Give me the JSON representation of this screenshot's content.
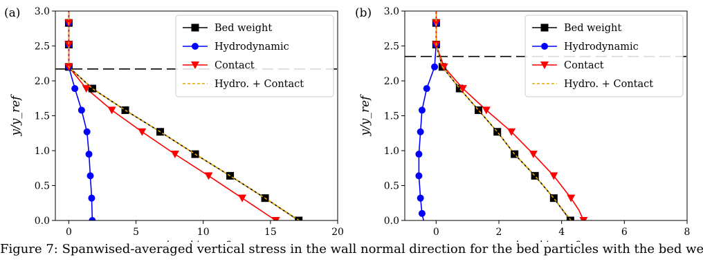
{
  "caption": "Figure 7: Spanwised-averaged vertical stress in the wall normal direction for the bed particles with the bed weight, hydrodynamic and contact contributions",
  "legend": {
    "bed_weight": "Bed weight",
    "hydrodynamic": "Hydrodynamic",
    "contact": "Contact",
    "sum": "Hydro. + Contact"
  },
  "colors": {
    "bed_weight": "#000000",
    "hydrodynamic": "#0000ff",
    "contact": "#ff0000",
    "sum": "#e6a800"
  },
  "chart_data": [
    {
      "type": "line",
      "panel_label": "(a)",
      "xlabel": "⟨σ_y⟩/σ_ref",
      "ylabel": "y/y_ref",
      "xlim": [
        -1,
        20
      ],
      "ylim": [
        0,
        3.0
      ],
      "xticks": [
        0,
        5,
        10,
        15,
        20
      ],
      "xtick_labels": [
        "0",
        "5",
        "10",
        "15",
        "20"
      ],
      "yticks": [
        0.0,
        0.5,
        1.0,
        1.5,
        2.0,
        2.5,
        3.0
      ],
      "ytick_labels": [
        "0.0",
        "0.5",
        "1.0",
        "1.5",
        "2.0",
        "2.5",
        "3.0"
      ],
      "hline": 2.17,
      "legend_position": "top-right",
      "series": [
        {
          "key": "bed_weight",
          "name": "Bed weight",
          "marker": "square",
          "x": [
            17.1,
            14.6,
            12.0,
            9.4,
            6.8,
            4.2,
            1.75,
            0.0,
            0.0,
            0.0,
            0.0
          ],
          "y": [
            0.0,
            0.32,
            0.64,
            0.95,
            1.27,
            1.58,
            1.89,
            2.2,
            2.52,
            2.83,
            3.0
          ],
          "mx": [
            17.1,
            14.6,
            12.0,
            9.4,
            6.8,
            4.2,
            1.75,
            0.0,
            0.0,
            0.0
          ],
          "my": [
            0.0,
            0.32,
            0.64,
            0.95,
            1.27,
            1.58,
            1.89,
            2.2,
            2.52,
            2.83
          ]
        },
        {
          "key": "hydrodynamic",
          "name": "Hydrodynamic",
          "marker": "circle",
          "x": [
            1.75,
            1.7,
            1.6,
            1.5,
            1.35,
            0.95,
            0.45,
            0.0,
            0.0,
            0.0,
            0.0
          ],
          "y": [
            0.0,
            0.32,
            0.64,
            0.95,
            1.27,
            1.58,
            1.89,
            2.2,
            2.52,
            2.83,
            3.0
          ],
          "mx": [
            1.75,
            1.7,
            1.6,
            1.5,
            1.35,
            0.95,
            0.45,
            0.0,
            0.0,
            0.0
          ],
          "my": [
            0.0,
            0.32,
            0.64,
            0.95,
            1.27,
            1.58,
            1.89,
            2.2,
            2.52,
            2.83
          ]
        },
        {
          "key": "contact",
          "name": "Contact",
          "marker": "triangle-down",
          "x": [
            15.4,
            12.9,
            10.4,
            7.9,
            5.45,
            3.2,
            1.3,
            0.0,
            0.0,
            0.0,
            0.0
          ],
          "y": [
            0.0,
            0.32,
            0.64,
            0.95,
            1.27,
            1.58,
            1.89,
            2.2,
            2.52,
            2.83,
            3.0
          ],
          "mx": [
            15.4,
            12.9,
            10.4,
            7.9,
            5.45,
            3.2,
            1.3,
            0.0,
            0.0,
            0.0
          ],
          "my": [
            0.0,
            0.32,
            0.64,
            0.95,
            1.27,
            1.58,
            1.89,
            2.2,
            2.52,
            2.83
          ]
        },
        {
          "key": "sum",
          "name": "Hydro. + Contact",
          "marker": "none",
          "x": [
            17.15,
            14.6,
            12.0,
            9.4,
            6.8,
            4.2,
            1.75,
            0.0,
            0.0,
            0.0,
            0.0
          ],
          "y": [
            0.0,
            0.32,
            0.64,
            0.95,
            1.27,
            1.58,
            1.89,
            2.2,
            2.52,
            2.83,
            3.0
          ],
          "mx": [],
          "my": []
        }
      ]
    },
    {
      "type": "line",
      "panel_label": "(b)",
      "xlabel": "⟨σ_y⟩/σ_ref",
      "ylabel": "y/y_ref",
      "xlim": [
        -1,
        8
      ],
      "ylim": [
        0,
        3.0
      ],
      "xticks": [
        0,
        2,
        4,
        6,
        8
      ],
      "xtick_labels": [
        "0",
        "2",
        "4",
        "6",
        "8"
      ],
      "yticks": [
        0.0,
        0.5,
        1.0,
        1.5,
        2.0,
        2.5,
        3.0
      ],
      "ytick_labels": [
        "0.0",
        "0.5",
        "1.0",
        "1.5",
        "2.0",
        "2.5",
        "3.0"
      ],
      "hline": 2.35,
      "legend_position": "top-right",
      "series": [
        {
          "key": "bed_weight",
          "name": "Bed weight",
          "marker": "square",
          "x": [
            4.28,
            3.75,
            3.15,
            2.5,
            1.95,
            1.35,
            0.75,
            0.2,
            0.0,
            0.0,
            0.0,
            0.0
          ],
          "y": [
            0.0,
            0.32,
            0.64,
            0.95,
            1.27,
            1.58,
            1.89,
            2.2,
            2.52,
            2.83,
            2.95,
            3.0
          ],
          "mx": [
            4.28,
            3.75,
            3.15,
            2.5,
            1.95,
            1.35,
            0.75,
            0.2,
            0.0,
            0.0
          ],
          "my": [
            0.0,
            0.32,
            0.64,
            0.95,
            1.27,
            1.58,
            1.89,
            2.2,
            2.52,
            2.83
          ]
        },
        {
          "key": "hydrodynamic",
          "name": "Hydrodynamic",
          "marker": "circle",
          "x": [
            -0.4,
            -0.45,
            -0.5,
            -0.55,
            -0.55,
            -0.5,
            -0.45,
            -0.3,
            -0.05,
            0.0,
            0.0,
            0.0,
            0.0
          ],
          "y": [
            0.0,
            0.1,
            0.32,
            0.64,
            0.95,
            1.27,
            1.58,
            1.89,
            2.2,
            2.52,
            2.83,
            2.95,
            3.0
          ],
          "mx": [
            -0.45,
            -0.5,
            -0.55,
            -0.55,
            -0.5,
            -0.45,
            -0.3,
            -0.05,
            0.0,
            0.0
          ],
          "my": [
            0.1,
            0.32,
            0.64,
            0.95,
            1.27,
            1.58,
            1.89,
            2.2,
            2.52,
            2.83
          ]
        },
        {
          "key": "contact",
          "name": "Contact",
          "marker": "triangle-down",
          "x": [
            4.7,
            4.55,
            4.3,
            3.75,
            3.1,
            2.4,
            1.6,
            0.85,
            0.25,
            0.0,
            0.0,
            0.0,
            0.0
          ],
          "y": [
            0.0,
            0.15,
            0.32,
            0.64,
            0.95,
            1.27,
            1.58,
            1.89,
            2.2,
            2.52,
            2.83,
            2.95,
            3.0
          ],
          "mx": [
            4.7,
            4.3,
            3.75,
            3.1,
            2.4,
            1.6,
            0.85,
            0.25,
            0.0,
            0.0
          ],
          "my": [
            0.0,
            0.32,
            0.64,
            0.95,
            1.27,
            1.58,
            1.89,
            2.2,
            2.52,
            2.83
          ]
        },
        {
          "key": "sum",
          "name": "Hydro. + Contact",
          "marker": "none",
          "x": [
            4.3,
            3.75,
            3.15,
            2.5,
            1.95,
            1.35,
            0.75,
            0.2,
            0.0,
            0.0,
            0.0,
            0.0
          ],
          "y": [
            0.0,
            0.32,
            0.64,
            0.95,
            1.27,
            1.58,
            1.89,
            2.2,
            2.52,
            2.83,
            2.95,
            3.0
          ],
          "mx": [],
          "my": []
        }
      ]
    }
  ]
}
